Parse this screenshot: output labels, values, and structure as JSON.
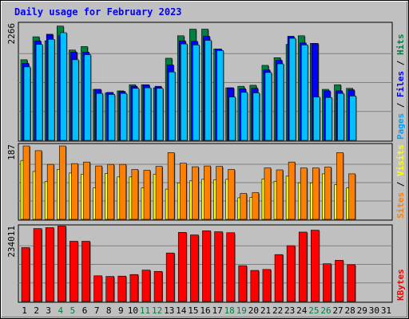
{
  "chart_data": {
    "type": "bar",
    "title": "Daily usage for February 2023",
    "x": [
      "1",
      "2",
      "3",
      "4",
      "5",
      "6",
      "7",
      "8",
      "9",
      "10",
      "11",
      "12",
      "13",
      "14",
      "15",
      "16",
      "17",
      "18",
      "19",
      "20",
      "21",
      "22",
      "23",
      "24",
      "25",
      "26",
      "27",
      "28",
      "29",
      "30",
      "31"
    ],
    "x_label_colors": [
      "#000000",
      "#000000",
      "#000000",
      "#008040",
      "#008040",
      "#000000",
      "#000000",
      "#000000",
      "#000000",
      "#000000",
      "#008040",
      "#008040",
      "#000000",
      "#000000",
      "#000000",
      "#000000",
      "#000000",
      "#008040",
      "#008040",
      "#000000",
      "#000000",
      "#000000",
      "#000000",
      "#000000",
      "#008040",
      "#008040",
      "#000000",
      "#000000",
      "#000000",
      "#000000",
      "#000000"
    ],
    "panels": [
      {
        "name": "pages-files-hits",
        "max_label": "2266",
        "ymax": 2266,
        "ylabel_parts": [
          {
            "text": "Pages",
            "color": "#00a0ff"
          },
          {
            "text": " / ",
            "color": "#000000"
          },
          {
            "text": "Files",
            "color": "#0000ff"
          },
          {
            "text": " / ",
            "color": "#000000"
          },
          {
            "text": "Hits",
            "color": "#008040"
          }
        ],
        "series": [
          {
            "name": "Hits",
            "color": "#008040",
            "values": [
              1580,
              2030,
              1950,
              2240,
              1770,
              1840,
              1000,
              930,
              970,
              1090,
              1090,
              1030,
              1610,
              2050,
              2180,
              2180,
              1790,
              1030,
              1060,
              1080,
              1470,
              1620,
              1880,
              2050,
              1900,
              1000,
              1090,
              1020,
              null,
              null,
              null
            ]
          },
          {
            "name": "Files",
            "color": "#0000ff",
            "values": [
              1510,
              1950,
              2080,
              2060,
              1730,
              1730,
              1000,
              940,
              960,
              1060,
              1090,
              1060,
              1480,
              1950,
              1940,
              2040,
              1790,
              1030,
              1010,
              1020,
              1380,
              1570,
              2040,
              1910,
              1900,
              970,
              970,
              990,
              null,
              null,
              null
            ]
          },
          {
            "name": "Pages",
            "color": "#00c0ff",
            "values": [
              1440,
              1880,
              1980,
              2110,
              1580,
              1680,
              920,
              900,
              920,
              1020,
              1030,
              1020,
              1340,
              1890,
              1870,
              1960,
              1760,
              850,
              940,
              930,
              1330,
              1500,
              2000,
              1870,
              850,
              840,
              920,
              870,
              null,
              null,
              null
            ]
          }
        ]
      },
      {
        "name": "sites-visits",
        "max_label": "187",
        "ymax": 187,
        "ylabel_parts": [
          {
            "text": "Sites",
            "color": "#ff8000"
          },
          {
            "text": " / ",
            "color": "#000000"
          },
          {
            "text": "Visits",
            "color": "#ffff00"
          }
        ],
        "series": [
          {
            "name": "Visits",
            "color": "#ffff00",
            "values": [
              150,
              122,
              96,
              127,
              118,
              115,
              80,
              117,
              108,
              108,
              80,
              115,
              77,
              93,
              98,
              102,
              101,
              102,
              55,
              56,
              103,
              97,
              110,
              93,
              93,
              116,
              88,
              80,
              null,
              null,
              null
            ]
          },
          {
            "name": "Sites",
            "color": "#ff8000",
            "values": [
              187,
              175,
              140,
              187,
              142,
              146,
              136,
              140,
              140,
              127,
              125,
              135,
              170,
              143,
              134,
              136,
              135,
              127,
              66,
              68,
              131,
              126,
              146,
              131,
              131,
              133,
              170,
              116,
              null,
              null,
              null
            ]
          }
        ]
      },
      {
        "name": "kbytes",
        "max_label": "234011",
        "ymax": 234011,
        "ylabel_parts": [
          {
            "text": "KBytes",
            "color": "#ff0000"
          }
        ],
        "series": [
          {
            "name": "KBytes",
            "color": "#ff0000",
            "values": [
              170000,
              230000,
              233000,
              238000,
              190000,
              190000,
              81000,
              79000,
              80000,
              85000,
              99000,
              95000,
              153000,
              218000,
              210000,
              223000,
              220000,
              217000,
              113000,
              98000,
              101000,
              148000,
              176000,
              219000,
              225000,
              119000,
              130000,
              116000,
              null,
              null,
              null
            ]
          }
        ]
      }
    ]
  }
}
